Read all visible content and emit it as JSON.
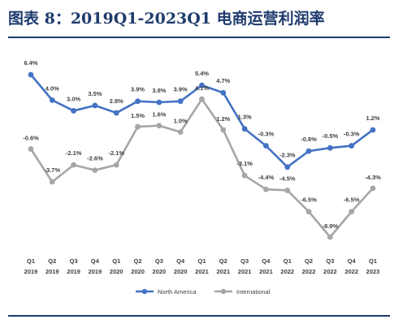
{
  "header": {
    "title": "图表 8：2019Q1-2023Q1 电商运营利润率"
  },
  "chart_data": {
    "type": "line",
    "categories": [
      [
        "Q1",
        "2019"
      ],
      [
        "Q2",
        "2019"
      ],
      [
        "Q3",
        "2019"
      ],
      [
        "Q4",
        "2019"
      ],
      [
        "Q1",
        "2020"
      ],
      [
        "Q2",
        "2020"
      ],
      [
        "Q3",
        "2020"
      ],
      [
        "Q4",
        "2020"
      ],
      [
        "Q1",
        "2021"
      ],
      [
        "Q2",
        "2021"
      ],
      [
        "Q3",
        "2021"
      ],
      [
        "Q4",
        "2021"
      ],
      [
        "Q1",
        "2022"
      ],
      [
        "Q2",
        "2022"
      ],
      [
        "Q3",
        "2022"
      ],
      [
        "Q4",
        "2022"
      ],
      [
        "Q1",
        "2023"
      ]
    ],
    "series": [
      {
        "name": "North America",
        "color": "#4472c4",
        "values": [
          6.4,
          4.0,
          3.0,
          3.5,
          2.8,
          3.9,
          3.8,
          3.9,
          5.4,
          4.7,
          1.3,
          -0.3,
          -2.3,
          -0.8,
          -0.5,
          -0.3,
          1.2
        ],
        "labels": [
          "6.4%",
          "4.0%",
          "3.0%",
          "3.5%",
          "2.8%",
          "3.9%",
          "3.8%",
          "3.9%",
          "5.4%",
          "4.7%",
          "1.3%",
          "-0.3%",
          "-2.3%",
          "-0.8%",
          "-0.5%",
          "-0.3%",
          "1.2%"
        ]
      },
      {
        "name": "International",
        "color": "#a6a6a6",
        "values": [
          -0.6,
          -3.7,
          -2.1,
          -2.6,
          -2.1,
          1.5,
          1.6,
          1.0,
          4.1,
          1.2,
          -3.1,
          -4.4,
          -4.5,
          -6.5,
          -8.9,
          -6.5,
          -4.3
        ],
        "labels": [
          "-0.6%",
          "-3.7%",
          "-2.1%",
          "-2.6%",
          "-2.1%",
          "1.5%",
          "1.6%",
          "1.0%",
          "4.1%",
          "1.2%",
          "-3.1%",
          "-4.4%",
          "-4.5%",
          "-6.5%",
          "-8.9%",
          "-6.5%",
          "-4.3%"
        ]
      }
    ],
    "legend_position": "bottom",
    "grid": false
  }
}
